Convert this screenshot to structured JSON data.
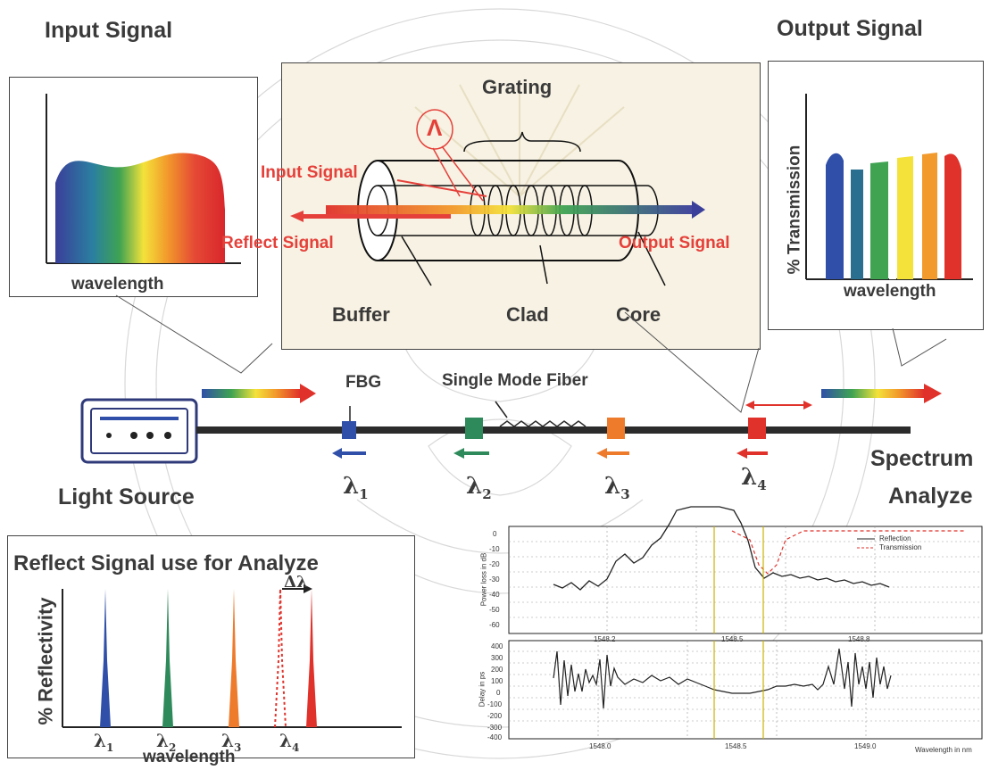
{
  "labels": {
    "input_signal": "Input Signal",
    "output_signal": "Output Signal",
    "grating": "Grating",
    "lambda": "Λ",
    "input_signal_inner": "Input Signal",
    "reflect_signal_inner": "Reflect Signal",
    "output_signal_inner": "Output Signal",
    "buffer": "Buffer",
    "clad": "Clad",
    "core": "Core",
    "wavelength_in": "wavelength",
    "wavelength_out": "wavelength",
    "transmission": "% Transmission",
    "fbg": "FBG",
    "single_mode_fiber": "Single Mode Fiber",
    "light_source": "Light Source",
    "spectrum_analyze_1": "Spectrum",
    "spectrum_analyze_2": "Analyze",
    "lambda1": "λ",
    "lambda2": "λ",
    "lambda3": "λ",
    "lambda4": "λ",
    "sub1": "1",
    "sub2": "2",
    "sub3": "3",
    "sub4": "4",
    "reflect_use": "Reflect Signal use for Analyze",
    "reflectivity": "% Reflectivity",
    "wavelength_bottom": "wavelength",
    "delta_lambda": "Δλ"
  },
  "plot_top": {
    "ylabel": "Power loss in dB",
    "yticks": [
      "0",
      "-10",
      "-20",
      "-30",
      "-40",
      "-50",
      "-60"
    ],
    "xticks": [
      "1548.2",
      "1548.5",
      "1548.8"
    ],
    "legend": [
      "Reflection",
      "Transmission"
    ]
  },
  "plot_bottom": {
    "ylabel": "Delay in ps",
    "yticks": [
      "400",
      "300",
      "200",
      "100",
      "0",
      "-100",
      "-200",
      "-300",
      "-400"
    ],
    "xticks": [
      "1548.0",
      "1548.5",
      "1549.0"
    ],
    "xlabel": "Wavelength in nm"
  },
  "colors": {
    "arrow_red": "#e5403a",
    "fiber": "#2b2b2b",
    "blue": "#2f4fa8",
    "green": "#2e8a5a",
    "orange": "#ee7a2b",
    "red": "#e0322b"
  }
}
